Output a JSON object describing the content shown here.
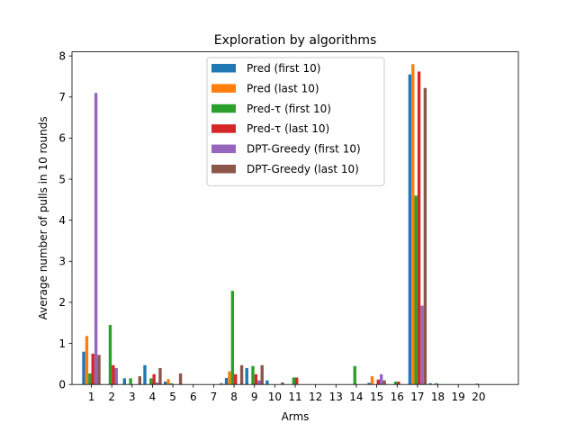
{
  "chart_data": {
    "type": "bar",
    "title": "Exploration by algorithms",
    "xlabel": "Arms",
    "ylabel": "Average number of pulls in 10 rounds",
    "ylim": [
      0,
      8.1
    ],
    "xlim": [
      -0.95,
      20.95
    ],
    "yticks": [
      0,
      1,
      2,
      3,
      4,
      5,
      6,
      7,
      8
    ],
    "categories": [
      "1",
      "2",
      "3",
      "4",
      "5",
      "6",
      "7",
      "8",
      "9",
      "10",
      "11",
      "12",
      "13",
      "14",
      "15",
      "16",
      "17",
      "18",
      "19",
      "20"
    ],
    "legend_position": "upper center",
    "series": [
      {
        "name": "Pred (first 10)",
        "color": "#1f77b4",
        "values": [
          0.8,
          0.0,
          0.15,
          0.47,
          0.07,
          0.0,
          0.0,
          0.16,
          0.4,
          0.1,
          0.0,
          0.0,
          0.0,
          0.0,
          0.04,
          0.0,
          7.55,
          0.03,
          0.0,
          0.0
        ]
      },
      {
        "name": "Pred (last 10)",
        "color": "#ff7f0e",
        "values": [
          1.18,
          0.0,
          0.0,
          0.0,
          0.13,
          0.0,
          0.0,
          0.32,
          0.0,
          0.0,
          0.0,
          0.0,
          0.0,
          0.0,
          0.2,
          0.0,
          7.8,
          0.0,
          0.0,
          0.0
        ]
      },
      {
        "name": "Pred-τ (first 10)",
        "color": "#2ca02c",
        "values": [
          0.27,
          1.45,
          0.15,
          0.15,
          0.03,
          0.0,
          0.0,
          2.28,
          0.45,
          0.0,
          0.17,
          0.0,
          0.0,
          0.45,
          0.0,
          0.07,
          4.6,
          0.03,
          0.0,
          0.02
        ]
      },
      {
        "name": "Pred-τ (last 10)",
        "color": "#d62728",
        "values": [
          0.75,
          0.47,
          0.0,
          0.25,
          0.0,
          0.0,
          0.0,
          0.25,
          0.25,
          0.0,
          0.17,
          0.0,
          0.0,
          0.0,
          0.12,
          0.07,
          7.62,
          0.0,
          0.0,
          0.0
        ]
      },
      {
        "name": "DPT-Greedy (first 10)",
        "color": "#9467bd",
        "values": [
          7.1,
          0.4,
          0.0,
          0.05,
          0.0,
          0.0,
          0.0,
          0.0,
          0.1,
          0.0,
          0.0,
          0.0,
          0.0,
          0.0,
          0.25,
          0.0,
          1.92,
          0.0,
          0.0,
          0.0
        ]
      },
      {
        "name": "DPT-Greedy (last 10)",
        "color": "#8c564b",
        "values": [
          0.72,
          0.0,
          0.2,
          0.4,
          0.27,
          0.0,
          0.03,
          0.47,
          0.47,
          0.05,
          0.0,
          0.0,
          0.0,
          0.0,
          0.1,
          0.0,
          7.22,
          0.0,
          0.0,
          0.0
        ]
      }
    ]
  }
}
